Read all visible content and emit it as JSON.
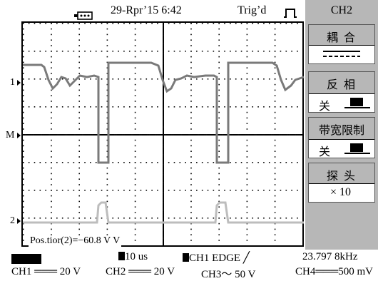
{
  "status_bar": {
    "date_time": "29-Rpr’15  6:42",
    "trigger_status": "Trig’d"
  },
  "screen": {
    "markers": {
      "ch1": "1",
      "math": "M",
      "ch2": "2"
    },
    "position_readout": "Pos.tior(2)=−60.8 V  V"
  },
  "menu": {
    "title": "CH2",
    "items": [
      {
        "label": "耦  合",
        "value": ""
      },
      {
        "label": "反  相",
        "value": "关"
      },
      {
        "label": "带宽限制",
        "value": "关"
      },
      {
        "label": "探  头",
        "value": "× 10"
      }
    ]
  },
  "bottom": {
    "timebase": "10 us",
    "trigger": "CH1 EDGE",
    "frequency": "23.797 8kHz",
    "ch1": "CH1 ═══  20 V",
    "ch2": "CH2 ═══  20 V",
    "ch3": "CH3～  50 V",
    "ch4": "CH4═══500 mV"
  },
  "colors": {
    "ch1_trace": "#7a7a7a",
    "ch2_trace": "#bdbdbd",
    "menu_bg": "#b7b7b7"
  }
}
